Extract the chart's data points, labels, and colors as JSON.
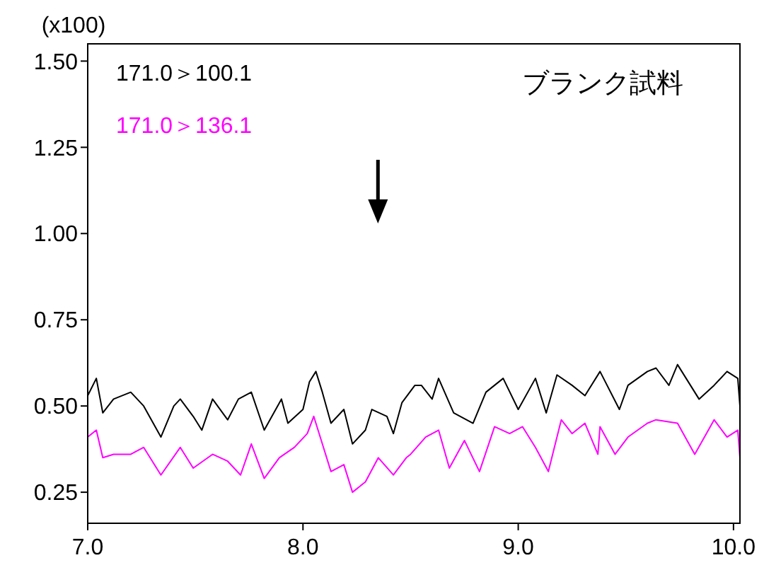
{
  "chart_data": {
    "type": "line",
    "title": "ブランク試料",
    "ylabel": "(x100)",
    "xlim": [
      7.0,
      10.03
    ],
    "ylim": [
      0.16,
      1.55
    ],
    "xticks": [
      {
        "value": 7,
        "label": "7.0"
      },
      {
        "value": 8,
        "label": "8.0"
      },
      {
        "value": 9,
        "label": "9.0"
      },
      {
        "value": 10,
        "label": "10.0"
      }
    ],
    "yticks": [
      {
        "value": 0.25,
        "label": "0.25"
      },
      {
        "value": 0.5,
        "label": "0.50"
      },
      {
        "value": 0.75,
        "label": "0.75"
      },
      {
        "value": 1,
        "label": "1.00"
      },
      {
        "value": 1.25,
        "label": "1.25"
      },
      {
        "value": 1.5,
        "label": "1.50"
      }
    ],
    "grid": false,
    "legend": "top left",
    "marker": "none",
    "line_style": "solid",
    "series": [
      {
        "name": "171.0＞100.1",
        "color": "#000000",
        "x": [
          7.0,
          7.04,
          7.07,
          7.12,
          7.2,
          7.26,
          7.34,
          7.4,
          7.43,
          7.49,
          7.53,
          7.58,
          7.65,
          7.7,
          7.76,
          7.82,
          7.9,
          7.93,
          8.0,
          8.03,
          8.06,
          8.09,
          8.13,
          8.19,
          8.23,
          8.29,
          8.32,
          8.39,
          8.42,
          8.46,
          8.52,
          8.55,
          8.6,
          8.63,
          8.7,
          8.79,
          8.85,
          8.93,
          9.0,
          9.08,
          9.13,
          9.18,
          9.25,
          9.31,
          9.38,
          9.47,
          9.51,
          9.6,
          9.64,
          9.7,
          9.74,
          9.8,
          9.84,
          9.91,
          9.97,
          10.02,
          10.03
        ],
        "values": [
          0.53,
          0.58,
          0.48,
          0.52,
          0.54,
          0.5,
          0.41,
          0.5,
          0.52,
          0.47,
          0.43,
          0.52,
          0.46,
          0.52,
          0.54,
          0.43,
          0.52,
          0.45,
          0.49,
          0.57,
          0.6,
          0.54,
          0.45,
          0.49,
          0.39,
          0.43,
          0.49,
          0.47,
          0.42,
          0.51,
          0.56,
          0.56,
          0.52,
          0.58,
          0.48,
          0.45,
          0.54,
          0.58,
          0.49,
          0.58,
          0.48,
          0.59,
          0.56,
          0.53,
          0.6,
          0.49,
          0.56,
          0.6,
          0.61,
          0.56,
          0.62,
          0.56,
          0.52,
          0.56,
          0.6,
          0.58,
          0.5
        ]
      },
      {
        "name": "171.0＞136.1",
        "color": "#ff00ff",
        "x": [
          7.0,
          7.04,
          7.07,
          7.12,
          7.2,
          7.26,
          7.3,
          7.34,
          7.43,
          7.49,
          7.58,
          7.65,
          7.71,
          7.76,
          7.82,
          7.89,
          7.96,
          8.02,
          8.05,
          8.09,
          8.13,
          8.19,
          8.23,
          8.29,
          8.35,
          8.42,
          8.48,
          8.5,
          8.57,
          8.63,
          8.68,
          8.75,
          8.82,
          8.89,
          8.96,
          9.02,
          9.08,
          9.14,
          9.2,
          9.25,
          9.31,
          9.37,
          9.38,
          9.45,
          9.51,
          9.6,
          9.64,
          9.74,
          9.82,
          9.91,
          9.97,
          10.02,
          10.03
        ],
        "values": [
          0.41,
          0.43,
          0.35,
          0.36,
          0.36,
          0.38,
          0.34,
          0.3,
          0.38,
          0.32,
          0.36,
          0.34,
          0.3,
          0.39,
          0.29,
          0.35,
          0.38,
          0.42,
          0.47,
          0.39,
          0.31,
          0.33,
          0.25,
          0.28,
          0.35,
          0.3,
          0.35,
          0.36,
          0.41,
          0.43,
          0.32,
          0.4,
          0.31,
          0.44,
          0.42,
          0.44,
          0.38,
          0.31,
          0.46,
          0.42,
          0.45,
          0.36,
          0.44,
          0.36,
          0.41,
          0.45,
          0.46,
          0.45,
          0.36,
          0.46,
          0.41,
          0.43,
          0.35
        ]
      }
    ]
  }
}
